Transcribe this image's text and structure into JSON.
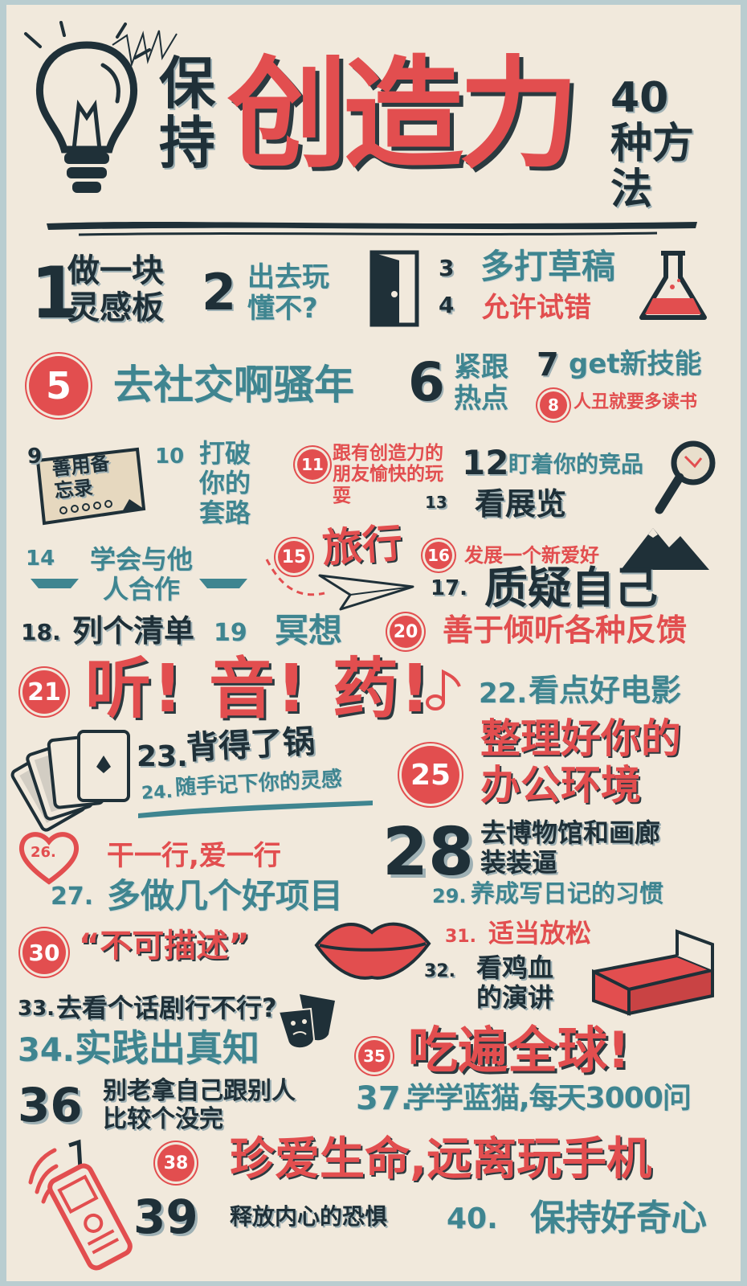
{
  "title": {
    "left": "保持",
    "main": "创造力",
    "right": "40种方法"
  },
  "colors": {
    "red": "#e24e4f",
    "dark": "#1f3038",
    "blue": "#3f8590",
    "bg": "#f1e9dc"
  },
  "items": [
    {
      "num": "1",
      "text": "做一块灵感板"
    },
    {
      "num": "2",
      "text": "出去玩懂不?"
    },
    {
      "num": "3",
      "text": "多打草稿"
    },
    {
      "num": "4",
      "text": "允许试错"
    },
    {
      "num": "5",
      "text": "去社交啊骚年"
    },
    {
      "num": "6",
      "text": "紧跟热点"
    },
    {
      "num": "7",
      "text": "get新技能"
    },
    {
      "num": "8",
      "text": "人丑就要多读书"
    },
    {
      "num": "9",
      "text": "善用备忘录"
    },
    {
      "num": "10",
      "text": "打破你的套路"
    },
    {
      "num": "11",
      "text": "跟有创造力的朋友愉快的玩耍"
    },
    {
      "num": "12",
      "text": "盯着你的竞品"
    },
    {
      "num": "13",
      "text": "看展览"
    },
    {
      "num": "14",
      "text": "学会与他人合作"
    },
    {
      "num": "15",
      "text": "旅行"
    },
    {
      "num": "16",
      "text": "发展一个新爱好"
    },
    {
      "num": "17.",
      "text": "质疑自己"
    },
    {
      "num": "18.",
      "text": "列个清单"
    },
    {
      "num": "19",
      "text": "冥想"
    },
    {
      "num": "20",
      "text": "善于倾听各种反馈"
    },
    {
      "num": "21",
      "text": "听!  音!  药!"
    },
    {
      "num": "22.",
      "text": "看点好电影"
    },
    {
      "num": "23.",
      "text": "背得了锅"
    },
    {
      "num": "24.",
      "text": "随手记下你的灵感"
    },
    {
      "num": "25",
      "text": "整理好你的办公环境"
    },
    {
      "num": "26.",
      "text": "干一行,爱一行"
    },
    {
      "num": "27.",
      "text": "多做几个好项目"
    },
    {
      "num": "28",
      "text": "去博物馆和画廊装装逼"
    },
    {
      "num": "29.",
      "text": "养成写日记的习惯"
    },
    {
      "num": "30",
      "text": "“不可描述”"
    },
    {
      "num": "31.",
      "text": "适当放松"
    },
    {
      "num": "32.",
      "text": "看鸡血的演讲"
    },
    {
      "num": "33.",
      "text": "去看个话剧行不行?"
    },
    {
      "num": "34.",
      "text": "实践出真知"
    },
    {
      "num": "35",
      "text": "吃遍全球!"
    },
    {
      "num": "36",
      "text": "别老拿自己跟别人比较个没完"
    },
    {
      "num": "37.",
      "text": "学学蓝猫,每天3000问"
    },
    {
      "num": "38",
      "text": "珍爱生命,远离玩手机"
    },
    {
      "num": "39",
      "text": "释放内心的恐惧"
    },
    {
      "num": "40.",
      "text": "保持好奇心"
    }
  ]
}
